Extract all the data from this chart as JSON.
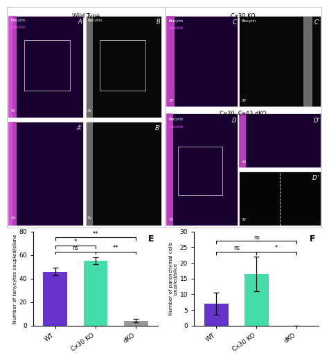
{
  "panel_E": {
    "categories": [
      "WT",
      "Cx30 KO",
      "dKO"
    ],
    "values": [
      46,
      55,
      4
    ],
    "errors": [
      3,
      3,
      1.5
    ],
    "colors": [
      "#6633cc",
      "#44ddaa",
      "#999999"
    ],
    "ylabel": "Number of tanycytes coupled/plane",
    "title": "E",
    "ylim": [
      0,
      80
    ],
    "yticks": [
      0,
      20,
      40,
      60,
      80
    ]
  },
  "panel_F": {
    "categories": [
      "WT",
      "Cx30 KO",
      "dKO"
    ],
    "values": [
      7,
      16.5,
      0
    ],
    "errors": [
      3.5,
      5.5,
      0
    ],
    "colors": [
      "#6633cc",
      "#44ddaa",
      "#999999"
    ],
    "ylabel": "Number of parenchymal cells\ncoupled/slice",
    "title": "F",
    "ylim": [
      0,
      30
    ],
    "yticks": [
      0,
      5,
      10,
      15,
      20,
      25,
      30
    ]
  },
  "bg_color": "#e8e8e8",
  "outer_border_color": "#bbbbbb",
  "panel_bg_dark": "#100020",
  "panel_bg_black": "#080808",
  "magenta_color": "#cc44cc",
  "white_bar_color": "#cccccc",
  "label_color_white": "#ffffff",
  "label_color_magenta": "#ff55ff",
  "label_color_black": "#000000",
  "sig_fontsize": 6,
  "sig_lw": 0.8
}
